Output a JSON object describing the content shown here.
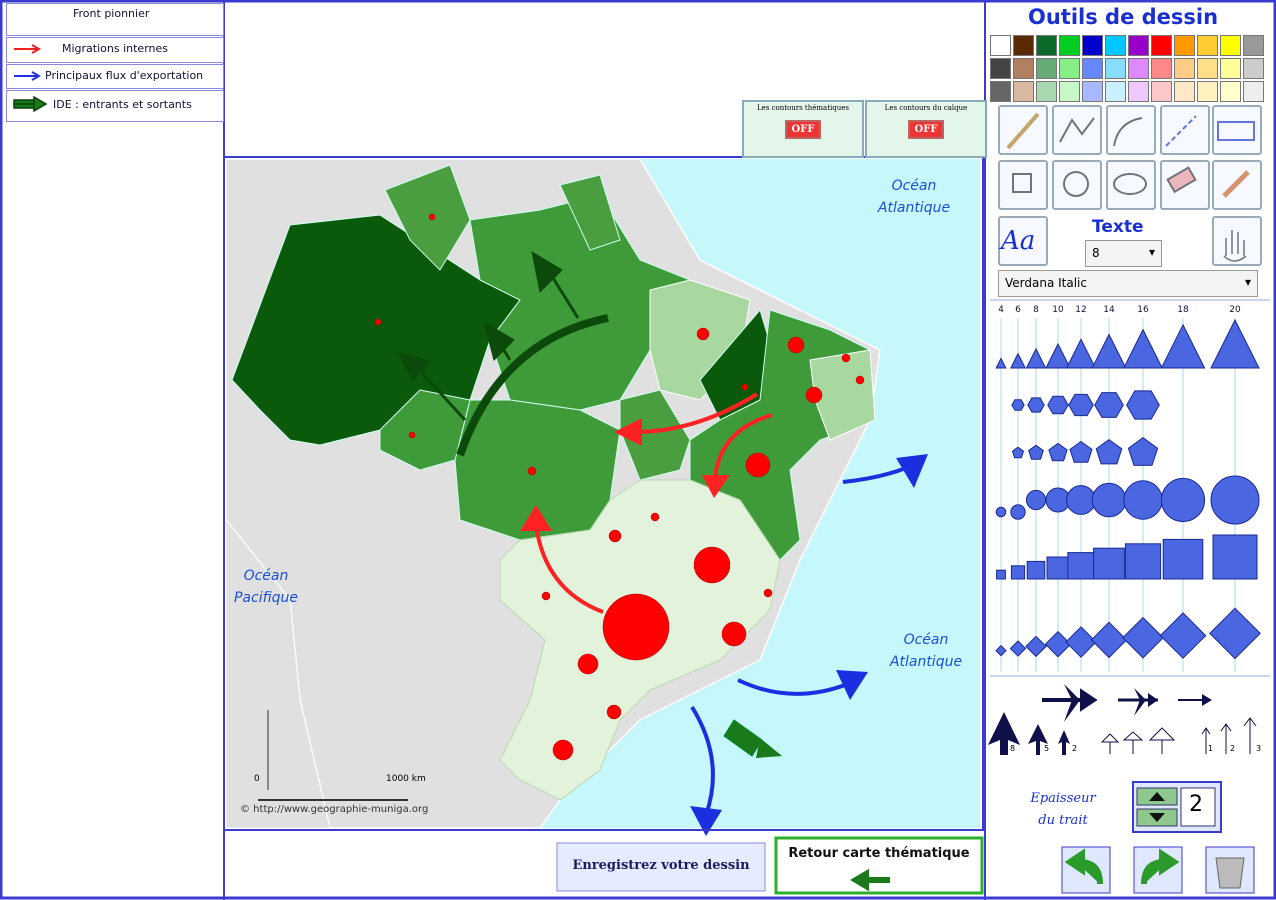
{
  "legend": {
    "items": [
      {
        "label": "Front pionnier"
      },
      {
        "label": "Migrations internes"
      },
      {
        "label": "Principaux flux d'exportation"
      },
      {
        "label": "IDE : entrants et sortants"
      }
    ]
  },
  "toggles": [
    {
      "label": "Les contours thématiques",
      "state": "OFF"
    },
    {
      "label": "Les contours du calque",
      "state": "OFF"
    }
  ],
  "map": {
    "labels": [
      "Océan Atlantique",
      "Océan Pacifique",
      "Océan Atlantique"
    ],
    "scale": {
      "start": "0",
      "end": "1000 km"
    },
    "credit": "© http://www.geographie-muniga.org"
  },
  "tools": {
    "title": "Outils de dessin",
    "icon_text": "Aa",
    "text_label": "Texte",
    "font_size": "8",
    "font": "Verdana Italic",
    "sizes": [
      4,
      6,
      8,
      10,
      12,
      14,
      16,
      18,
      20
    ],
    "arrow_labels": [
      "8",
      "5",
      "2",
      "1",
      "2",
      "3"
    ],
    "thickness_label": "Epaisseur du trait",
    "thickness": 2
  },
  "buttons": {
    "save": "Enregistrez votre dessin",
    "back": "Retour carte thématique"
  }
}
